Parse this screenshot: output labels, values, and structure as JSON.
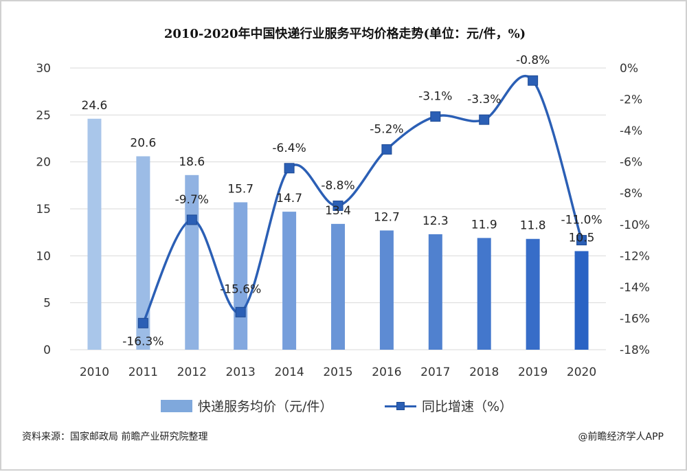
{
  "chart_data": {
    "type": "bar+line",
    "title": "2010-2020年中国快递行业服务平均价格走势(单位：元/件，%)",
    "categories": [
      "2010",
      "2011",
      "2012",
      "2013",
      "2014",
      "2015",
      "2016",
      "2017",
      "2018",
      "2019",
      "2020"
    ],
    "series": [
      {
        "name": "快递服务均价（元/件）",
        "type": "bar",
        "axis": "left",
        "values": [
          24.6,
          20.6,
          18.6,
          15.7,
          14.7,
          13.4,
          12.7,
          12.3,
          11.9,
          11.8,
          10.5
        ],
        "labels": [
          "24.6",
          "20.6",
          "18.6",
          "15.7",
          "14.7",
          "13.4",
          "12.7",
          "12.3",
          "11.9",
          "11.8",
          "10.5"
        ]
      },
      {
        "name": "同比增速（%）",
        "type": "line",
        "axis": "right",
        "values": [
          null,
          -16.3,
          -9.7,
          -15.6,
          -6.4,
          -8.8,
          -5.2,
          -3.1,
          -3.3,
          -0.8,
          -11.0
        ],
        "labels": [
          "",
          "-16.3%",
          "-9.7%",
          "-15.6%",
          "-6.4%",
          "-8.8%",
          "-5.2%",
          "-3.1%",
          "-3.3%",
          "-0.8%",
          "-11.0%"
        ]
      }
    ],
    "y_left": {
      "min": 0,
      "max": 30,
      "ticks": [
        "0",
        "5",
        "10",
        "15",
        "20",
        "25",
        "30"
      ]
    },
    "y_right": {
      "min": -18,
      "max": 0,
      "ticks": [
        "0%",
        "-2%",
        "-4%",
        "-6%",
        "-8%",
        "-10%",
        "-12%",
        "-14%",
        "-16%",
        "-18%"
      ]
    },
    "grid": true,
    "legend_position": "bottom",
    "colors": {
      "bar_light": "#a9c6ea",
      "bar_dark": "#2a63c4",
      "line": "#2b5fb5",
      "marker": "#2b5fb5",
      "grid": "#d9d9d9"
    }
  },
  "legend": {
    "bar_label": "快递服务均价（元/件）",
    "line_label": "同比增速（%）"
  },
  "footer": {
    "source": "资料来源：国家邮政局 前瞻产业研究院整理",
    "credit": "@前瞻经济学人APP"
  }
}
